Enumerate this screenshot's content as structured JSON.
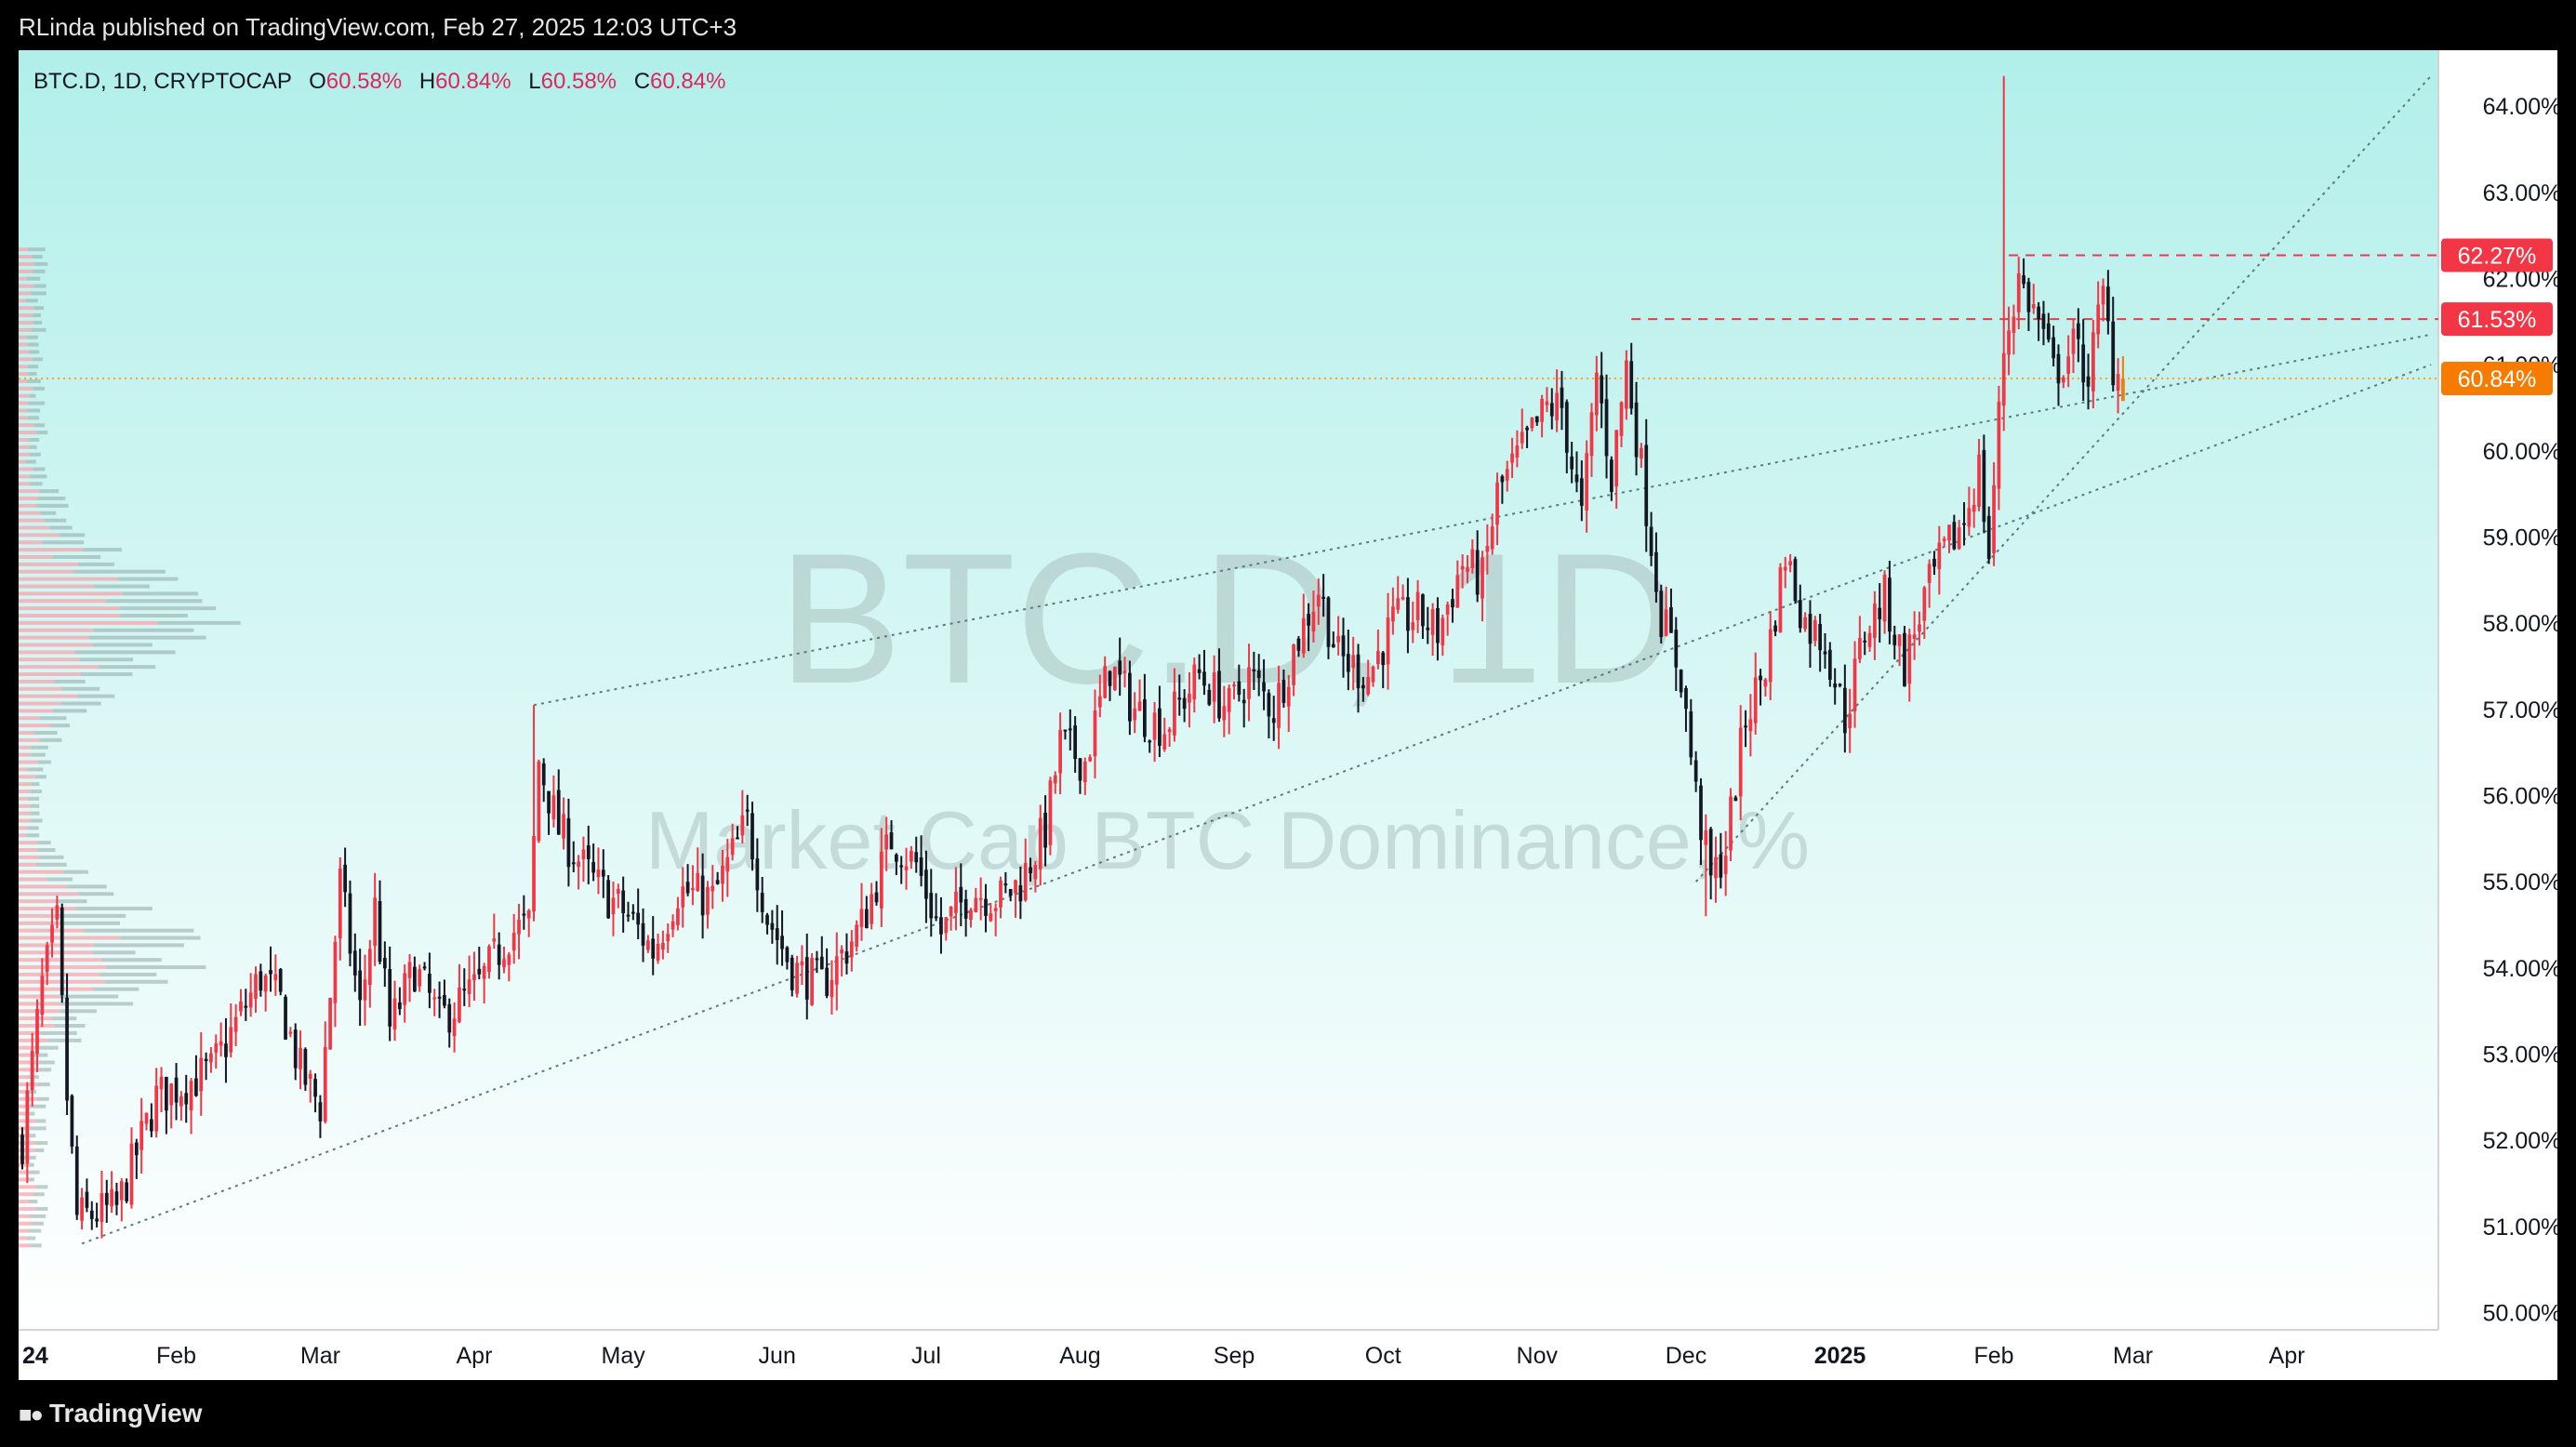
{
  "header": {
    "published": "RLinda published on TradingView.com, Feb 27, 2025 12:03 UTC+3"
  },
  "legend": {
    "symbol": "BTC.D, 1D, CRYPTOCAP",
    "o_label": "O",
    "o": "60.58%",
    "h_label": "H",
    "h": "60.84%",
    "l_label": "L",
    "l": "60.58%",
    "c_label": "C",
    "c": "60.84%"
  },
  "watermark": {
    "symbol": "BTC.D, 1D",
    "name": "Market Cap BTC Dominance, %"
  },
  "footer": {
    "brand": "TradingView"
  },
  "colors": {
    "up": "#f23645",
    "down": "#131722",
    "bg_top": "#b2efea",
    "bg_bottom": "#ffffff",
    "price_tag_current": "#f57c00",
    "price_tag_level": "#f23645",
    "level_line": "#f23645",
    "current_line": "#f5a623"
  },
  "chart_data": {
    "type": "candlestick",
    "symbol": "BTC.D",
    "interval": "1D",
    "y_unit": "%",
    "ylim": [
      49.8,
      64.65
    ],
    "xlim": [
      "2024-01-01",
      "2025-04-30"
    ],
    "y_ticks": [
      "50.00%",
      "51.00%",
      "52.00%",
      "53.00%",
      "54.00%",
      "55.00%",
      "56.00%",
      "57.00%",
      "58.00%",
      "59.00%",
      "60.00%",
      "61.00%",
      "62.00%",
      "63.00%",
      "64.00%"
    ],
    "x_ticks": [
      {
        "date": "2024-01-01",
        "label": "24",
        "bold": true
      },
      {
        "date": "2024-02-01",
        "label": "Feb"
      },
      {
        "date": "2024-03-01",
        "label": "Mar"
      },
      {
        "date": "2024-04-01",
        "label": "Apr"
      },
      {
        "date": "2024-05-01",
        "label": "May"
      },
      {
        "date": "2024-06-01",
        "label": "Jun"
      },
      {
        "date": "2024-07-01",
        "label": "Jul"
      },
      {
        "date": "2024-08-01",
        "label": "Aug"
      },
      {
        "date": "2024-09-01",
        "label": "Sep"
      },
      {
        "date": "2024-10-01",
        "label": "Oct"
      },
      {
        "date": "2024-11-01",
        "label": "Nov"
      },
      {
        "date": "2024-12-01",
        "label": "Dec"
      },
      {
        "date": "2025-01-01",
        "label": "2025",
        "bold": true
      },
      {
        "date": "2025-02-01",
        "label": "Feb"
      },
      {
        "date": "2025-03-01",
        "label": "Mar"
      },
      {
        "date": "2025-04-01",
        "label": "Apr"
      }
    ],
    "price_tags": [
      {
        "value": 62.27,
        "label": "62.27%",
        "kind": "level"
      },
      {
        "value": 61.53,
        "label": "61.53%",
        "kind": "level"
      },
      {
        "value": 60.84,
        "label": "60.84%",
        "kind": "current"
      }
    ],
    "levels": [
      {
        "value": 62.27,
        "from": "2025-02-04",
        "to": "2025-04-30"
      },
      {
        "value": 61.53,
        "from": "2024-11-20",
        "to": "2025-04-30"
      }
    ],
    "current_price": 60.84,
    "trendlines": [
      {
        "p1": [
          "2024-01-13",
          50.8
        ],
        "p2": [
          "2025-04-30",
          61.0
        ]
      },
      {
        "p1": [
          "2024-04-13",
          57.05
        ],
        "p2": [
          "2025-04-30",
          61.35
        ]
      },
      {
        "p1": [
          "2024-12-03",
          55.0
        ],
        "p2": [
          "2025-04-30",
          64.35
        ]
      }
    ],
    "ohlc_anchors": [
      [
        "2024-01-01",
        52.0
      ],
      [
        "2024-01-05",
        53.8
      ],
      [
        "2024-01-08",
        54.5
      ],
      [
        "2024-01-10",
        52.5
      ],
      [
        "2024-01-12",
        51.1
      ],
      [
        "2024-01-20",
        51.2
      ],
      [
        "2024-01-28",
        52.5
      ],
      [
        "2024-02-08",
        52.8
      ],
      [
        "2024-02-18",
        53.9
      ],
      [
        "2024-02-22",
        53.6
      ],
      [
        "2024-02-26",
        52.8
      ],
      [
        "2024-03-01",
        52.4
      ],
      [
        "2024-03-05",
        55.0
      ],
      [
        "2024-03-09",
        53.5
      ],
      [
        "2024-03-12",
        54.7
      ],
      [
        "2024-03-15",
        53.3
      ],
      [
        "2024-03-20",
        54.0
      ],
      [
        "2024-03-25",
        53.4
      ],
      [
        "2024-04-02",
        53.8
      ],
      [
        "2024-04-08",
        54.4
      ],
      [
        "2024-04-12",
        54.5
      ],
      [
        "2024-04-14",
        56.4
      ],
      [
        "2024-04-18",
        55.6
      ],
      [
        "2024-04-25",
        55.0
      ],
      [
        "2024-05-02",
        54.6
      ],
      [
        "2024-05-07",
        54.2
      ],
      [
        "2024-05-12",
        54.9
      ],
      [
        "2024-05-19",
        54.8
      ],
      [
        "2024-05-26",
        55.7
      ],
      [
        "2024-05-30",
        54.6
      ],
      [
        "2024-06-04",
        54.0
      ],
      [
        "2024-06-10",
        53.8
      ],
      [
        "2024-06-18",
        54.5
      ],
      [
        "2024-06-24",
        55.5
      ],
      [
        "2024-06-29",
        55.2
      ],
      [
        "2024-07-04",
        54.4
      ],
      [
        "2024-07-10",
        54.9
      ],
      [
        "2024-07-16",
        54.8
      ],
      [
        "2024-07-20",
        55.0
      ],
      [
        "2024-07-25",
        55.6
      ],
      [
        "2024-07-28",
        56.6
      ],
      [
        "2024-08-02",
        56.4
      ],
      [
        "2024-08-07",
        57.5
      ],
      [
        "2024-08-12",
        57.0
      ],
      [
        "2024-08-18",
        56.8
      ],
      [
        "2024-08-25",
        57.4
      ],
      [
        "2024-08-31",
        57.0
      ],
      [
        "2024-09-04",
        57.4
      ],
      [
        "2024-09-09",
        57.0
      ],
      [
        "2024-09-13",
        57.7
      ],
      [
        "2024-09-18",
        58.4
      ],
      [
        "2024-09-22",
        57.6
      ],
      [
        "2024-09-28",
        57.4
      ],
      [
        "2024-10-03",
        58.0
      ],
      [
        "2024-10-08",
        58.1
      ],
      [
        "2024-10-12",
        57.9
      ],
      [
        "2024-10-17",
        58.7
      ],
      [
        "2024-10-21",
        58.5
      ],
      [
        "2024-10-24",
        59.5
      ],
      [
        "2024-10-29",
        60.0
      ],
      [
        "2024-11-03",
        60.5
      ],
      [
        "2024-11-06",
        60.5
      ],
      [
        "2024-11-10",
        59.2
      ],
      [
        "2024-11-13",
        60.9
      ],
      [
        "2024-11-16",
        59.7
      ],
      [
        "2024-11-19",
        61.0
      ],
      [
        "2024-11-22",
        59.8
      ],
      [
        "2024-11-26",
        58.1
      ],
      [
        "2024-11-30",
        57.4
      ],
      [
        "2024-12-03",
        56.0
      ],
      [
        "2024-12-06",
        55.0
      ],
      [
        "2024-12-09",
        55.4
      ],
      [
        "2024-12-13",
        56.9
      ],
      [
        "2024-12-17",
        57.5
      ],
      [
        "2024-12-21",
        58.8
      ],
      [
        "2024-12-25",
        58.0
      ],
      [
        "2024-12-29",
        57.8
      ],
      [
        "2025-01-02",
        56.9
      ],
      [
        "2025-01-06",
        57.9
      ],
      [
        "2025-01-10",
        58.3
      ],
      [
        "2025-01-14",
        57.5
      ],
      [
        "2025-01-18",
        58.3
      ],
      [
        "2025-01-22",
        58.8
      ],
      [
        "2025-01-26",
        59.2
      ],
      [
        "2025-01-29",
        59.8
      ],
      [
        "2025-01-31",
        58.8
      ],
      [
        "2025-02-03",
        61.2
      ],
      [
        "2025-02-06",
        62.0
      ],
      [
        "2025-02-10",
        61.5
      ],
      [
        "2025-02-13",
        60.9
      ],
      [
        "2025-02-17",
        61.2
      ],
      [
        "2025-02-20",
        60.9
      ],
      [
        "2025-02-23",
        61.8
      ],
      [
        "2025-02-25",
        61.0
      ],
      [
        "2025-02-27",
        60.84
      ]
    ],
    "spikes": [
      {
        "date": "2025-02-03",
        "high": 64.35
      },
      {
        "date": "2024-12-05",
        "low": 54.6
      },
      {
        "date": "2024-04-13",
        "high": 57.05
      },
      {
        "date": "2025-02-24",
        "high": 62.1
      }
    ]
  }
}
